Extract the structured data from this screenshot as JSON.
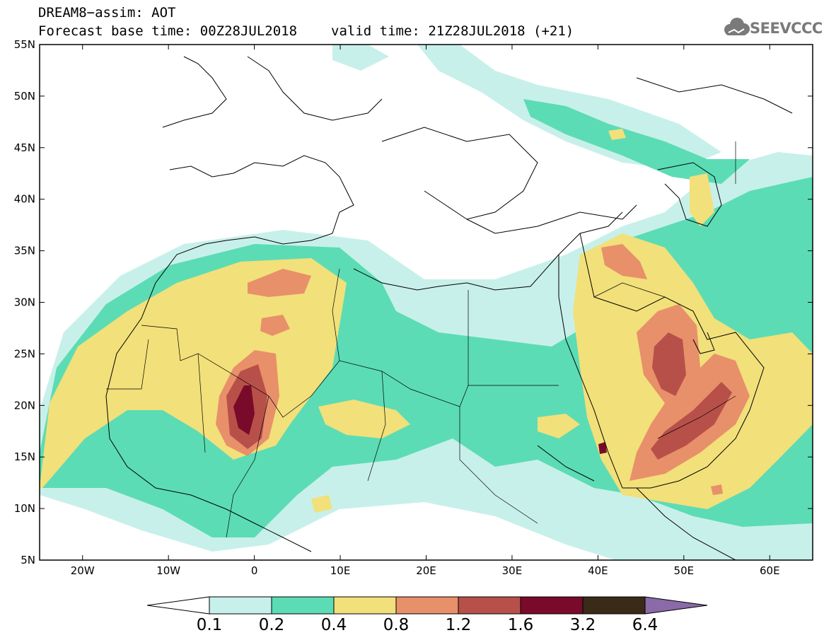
{
  "title": {
    "line1": "DREAM8−assim: AOT",
    "base_time": "Forecast base time: 00Z28JUL2018",
    "valid_time": "valid time: 21Z28JUL2018 (+21)"
  },
  "logo": {
    "text": "SEEVCCC",
    "icon": "cloud-icon"
  },
  "map": {
    "lon_range": [
      -25,
      65
    ],
    "lat_range": [
      5,
      55
    ],
    "lat_ticks": [
      "55N",
      "50N",
      "45N",
      "40N",
      "35N",
      "30N",
      "25N",
      "20N",
      "15N",
      "10N",
      "5N"
    ],
    "lon_ticks": [
      "20W",
      "10W",
      "0",
      "10E",
      "20E",
      "30E",
      "40E",
      "50E",
      "60E"
    ]
  },
  "colorbar": {
    "labels": [
      "0.1",
      "0.2",
      "0.4",
      "0.8",
      "1.2",
      "1.6",
      "3.2",
      "6.4"
    ],
    "colors": [
      "#ffffff",
      "#c8f0ea",
      "#5cdcb4",
      "#f2e07a",
      "#e8906a",
      "#b8504a",
      "#7a0a2a",
      "#3a2a18",
      "#8a6aa8"
    ]
  }
}
